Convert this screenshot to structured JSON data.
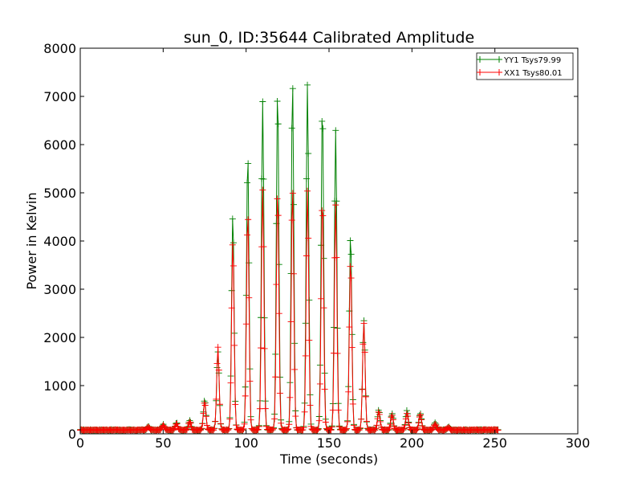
{
  "chart_data": {
    "type": "line",
    "title": "sun_0, ID:35644 Calibrated Amplitude",
    "xlabel": "Time (seconds)",
    "ylabel": "Power in Kelvin",
    "xlim": [
      0,
      300
    ],
    "ylim": [
      0,
      8000
    ],
    "xticks": [
      0,
      50,
      100,
      150,
      200,
      250,
      300
    ],
    "yticks": [
      0,
      1000,
      2000,
      3000,
      4000,
      5000,
      6000,
      7000,
      8000
    ],
    "grid": false,
    "legend_position": "top-right",
    "marker": "+",
    "x_range": [
      0,
      252
    ],
    "baseline": 80,
    "series": [
      {
        "name": "YY1 Tsys79.99",
        "color": "#008000",
        "peaks": [
          {
            "t": 41,
            "v": 150
          },
          {
            "t": 50,
            "v": 190
          },
          {
            "t": 58,
            "v": 230
          },
          {
            "t": 66,
            "v": 280
          },
          {
            "t": 75,
            "v": 700
          },
          {
            "t": 83,
            "v": 1700
          },
          {
            "t": 92,
            "v": 4550
          },
          {
            "t": 101,
            "v": 5800
          },
          {
            "t": 110,
            "v": 6900
          },
          {
            "t": 119,
            "v": 7150
          },
          {
            "t": 128,
            "v": 7300
          },
          {
            "t": 137,
            "v": 7250
          },
          {
            "t": 146,
            "v": 6850
          },
          {
            "t": 154,
            "v": 6300
          },
          {
            "t": 163,
            "v": 4150
          },
          {
            "t": 171,
            "v": 2350
          },
          {
            "t": 180,
            "v": 500
          },
          {
            "t": 188,
            "v": 420
          },
          {
            "t": 197,
            "v": 480
          },
          {
            "t": 205,
            "v": 430
          },
          {
            "t": 214,
            "v": 230
          },
          {
            "t": 222,
            "v": 140
          }
        ]
      },
      {
        "name": "XX1 Tsys80.01",
        "color": "#ff0000",
        "peaks": [
          {
            "t": 41,
            "v": 140
          },
          {
            "t": 50,
            "v": 180
          },
          {
            "t": 58,
            "v": 210
          },
          {
            "t": 66,
            "v": 250
          },
          {
            "t": 75,
            "v": 650
          },
          {
            "t": 83,
            "v": 1800
          },
          {
            "t": 92,
            "v": 4000
          },
          {
            "t": 101,
            "v": 4600
          },
          {
            "t": 110,
            "v": 5050
          },
          {
            "t": 119,
            "v": 5050
          },
          {
            "t": 128,
            "v": 5100
          },
          {
            "t": 137,
            "v": 5050
          },
          {
            "t": 146,
            "v": 4900
          },
          {
            "t": 154,
            "v": 4750
          },
          {
            "t": 163,
            "v": 3600
          },
          {
            "t": 171,
            "v": 2300
          },
          {
            "t": 180,
            "v": 450
          },
          {
            "t": 188,
            "v": 380
          },
          {
            "t": 197,
            "v": 420
          },
          {
            "t": 205,
            "v": 400
          },
          {
            "t": 214,
            "v": 200
          },
          {
            "t": 222,
            "v": 130
          }
        ]
      }
    ]
  }
}
